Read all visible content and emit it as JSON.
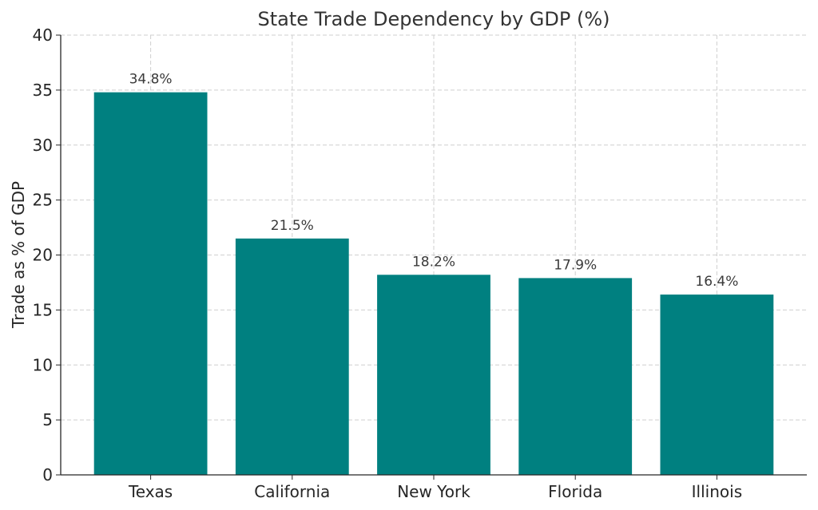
{
  "chart_data": {
    "type": "bar",
    "title": "State Trade Dependency by GDP (%)",
    "xlabel": "",
    "ylabel": "Trade as % of GDP",
    "categories": [
      "Texas",
      "California",
      "New York",
      "Florida",
      "Illinois"
    ],
    "values": [
      34.8,
      21.5,
      18.2,
      17.9,
      16.4
    ],
    "data_labels": [
      "34.8%",
      "21.5%",
      "18.2%",
      "17.9%",
      "16.4%"
    ],
    "ylim": [
      0,
      40
    ],
    "yticks": [
      0,
      5,
      10,
      15,
      20,
      25,
      30,
      35,
      40
    ],
    "bar_color": "#008080",
    "grid": true
  }
}
